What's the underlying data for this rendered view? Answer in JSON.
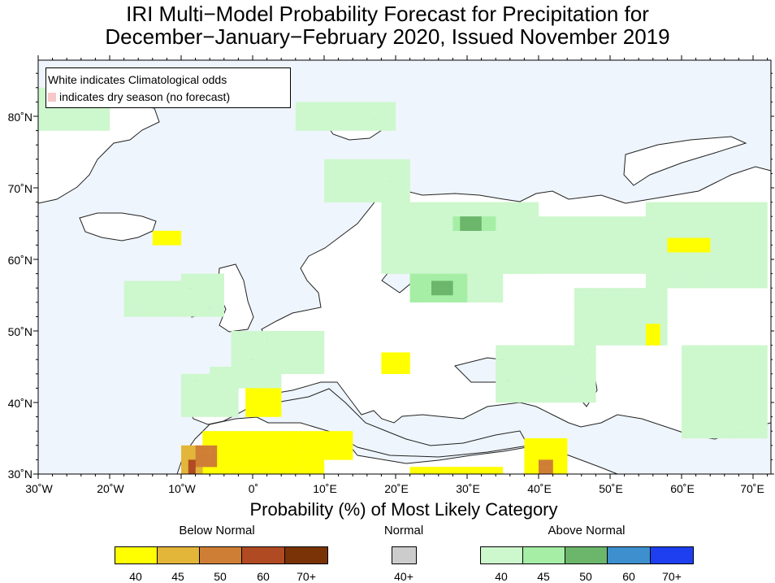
{
  "title": {
    "line1": "IRI Multi−Model Probability Forecast for Precipitation for",
    "line2": "December−January−February 2020, Issued November 2019"
  },
  "note": {
    "line1": "White indicates Climatological odds",
    "line2": "indicates dry season (no forecast)",
    "dry_season_color": "#f6c8c8"
  },
  "axes": {
    "lat_labels": [
      "80˚N",
      "70˚N",
      "60˚N",
      "50˚N",
      "40˚N",
      "30˚N"
    ],
    "lon_labels": [
      "30˚W",
      "20˚W",
      "10˚W",
      "0˚",
      "10˚E",
      "20˚E",
      "30˚E",
      "40˚E",
      "50˚E",
      "60˚E",
      "70˚E"
    ]
  },
  "colors": {
    "ocean": "#eef5fc",
    "land_climatology": "#ffffff",
    "below_40": "#ffff00",
    "below_45": "#e3b538",
    "below_50": "#cf7f35",
    "below_60": "#b04a22",
    "below_70": "#7a3306",
    "normal_40": "#cccccc",
    "above_40": "#cdf7cd",
    "above_45": "#a6eea6",
    "above_50": "#6cb66c",
    "above_60": "#3d8fce",
    "above_70": "#1e3ff0"
  },
  "legend": {
    "caption": "Probability (%) of Most Likely Category",
    "below_title": "Below Normal",
    "normal_title": "Normal",
    "above_title": "Above Normal",
    "below_labels": [
      "40",
      "45",
      "50",
      "60",
      "70+"
    ],
    "normal_labels": [
      "40+"
    ],
    "above_labels": [
      "40",
      "45",
      "50",
      "60",
      "70+"
    ]
  }
}
